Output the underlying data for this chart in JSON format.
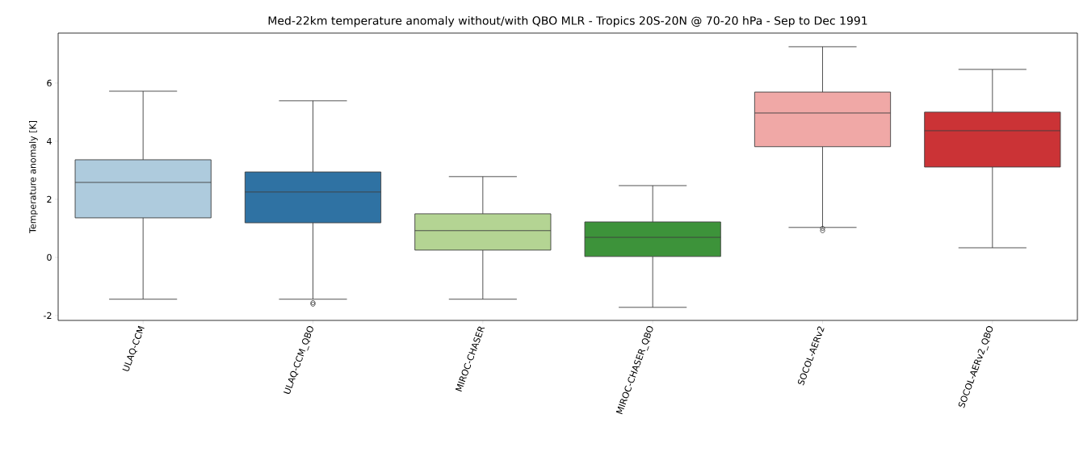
{
  "chart_data": {
    "type": "box",
    "title": "Med-22km temperature anomaly without/with QBO MLR - Tropics 20S-20N @ 70-20 hPa - Sep to Dec 1991",
    "ylabel": "Temperature anomaly [K]",
    "categories": [
      "ULAQ-CCM",
      "ULAQ-CCM_QBO",
      "MIROC-CHASER",
      "MIROC-CHASER_QBO",
      "SOCOL-AERv2",
      "SOCOL-AERv2_QBO"
    ],
    "colors": [
      "#aecbdd",
      "#2f72a3",
      "#b4d493",
      "#3d933a",
      "#f0a8a6",
      "#cb3336"
    ],
    "boxes": [
      {
        "low": -1.44,
        "q1": 1.36,
        "median": 2.58,
        "q3": 3.36,
        "high": 5.72
      },
      {
        "low": -1.44,
        "q1": 1.19,
        "median": 2.25,
        "q3": 2.94,
        "high": 5.39,
        "outliers": [
          -1.56,
          -1.61
        ]
      },
      {
        "low": -1.44,
        "q1": 0.25,
        "median": 0.92,
        "q3": 1.5,
        "high": 2.78
      },
      {
        "low": -1.72,
        "q1": 0.03,
        "median": 0.69,
        "q3": 1.22,
        "high": 2.47
      },
      {
        "low": 1.03,
        "q1": 3.81,
        "median": 4.97,
        "q3": 5.69,
        "high": 7.25,
        "outliers": [
          1.0,
          0.92
        ]
      },
      {
        "low": 0.33,
        "q1": 3.11,
        "median": 4.36,
        "q3": 5.0,
        "high": 6.47
      }
    ],
    "ylim": [
      -2.17,
      7.72
    ],
    "yticks": [
      -2,
      0,
      2,
      4,
      6
    ]
  }
}
